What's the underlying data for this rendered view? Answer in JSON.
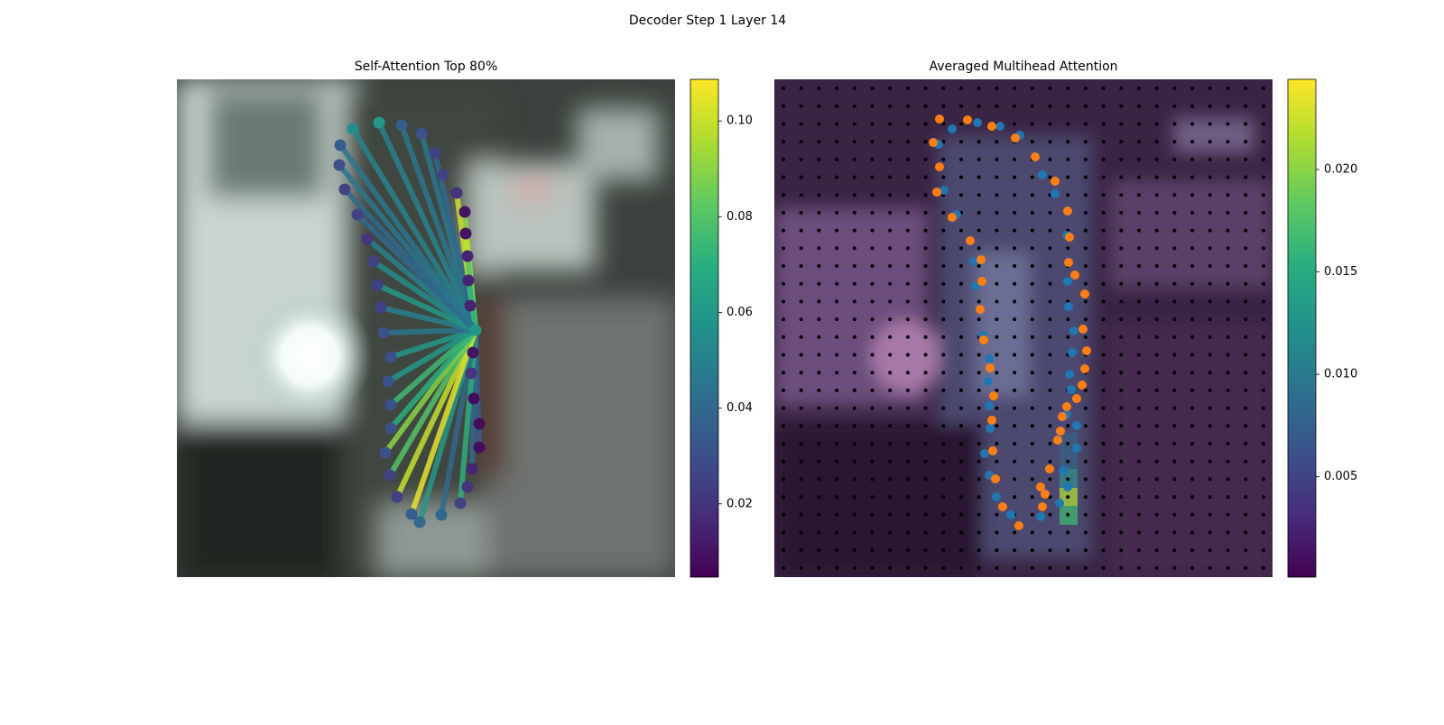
{
  "title": "Decoder Step 1 Layer 14",
  "chart_data": [
    {
      "type": "attention-graph",
      "title": "Self-Attention Top 80%",
      "xlim": [
        0,
        552
      ],
      "ylim": [
        552,
        0
      ],
      "x": [
        195,
        224,
        249,
        271,
        286,
        295,
        310,
        319,
        320,
        322,
        323,
        325,
        331,
        328,
        326,
        329,
        335,
        335,
        327,
        322,
        314,
        293,
        269,
        260,
        244,
        236,
        231,
        237,
        237,
        234,
        237,
        229,
        226,
        222,
        218,
        211,
        200,
        186,
        180,
        181
      ],
      "y": [
        55,
        48,
        51,
        60,
        82,
        106,
        126,
        147,
        171,
        196,
        223,
        251,
        278,
        303,
        326,
        354,
        382,
        408,
        432,
        452,
        470,
        483,
        491,
        482,
        463,
        439,
        414,
        387,
        361,
        335,
        308,
        281,
        253,
        228,
        202,
        177,
        150,
        122,
        95,
        73
      ],
      "values": [
        0.055,
        0.06,
        0.035,
        0.03,
        0.025,
        0.025,
        0.02,
        0.01,
        0.01,
        0.015,
        0.015,
        0.015,
        0.06,
        0.01,
        0.02,
        0.008,
        0.008,
        0.008,
        0.015,
        0.02,
        0.025,
        0.04,
        0.04,
        0.035,
        0.025,
        0.025,
        0.03,
        0.03,
        0.03,
        0.03,
        0.03,
        0.03,
        0.025,
        0.025,
        0.025,
        0.02,
        0.025,
        0.025,
        0.03,
        0.035
      ],
      "weights": [
        0.05,
        0.05,
        0.045,
        0.045,
        0.04,
        null,
        0.1,
        0.09,
        0.1,
        0.08,
        0.07,
        null,
        null,
        0.06,
        0.05,
        0.04,
        null,
        0.035,
        0.04,
        null,
        0.07,
        0.04,
        0.06,
        0.105,
        0.1,
        0.08,
        0.09,
        0.07,
        0.075,
        0.06,
        0.06,
        0.045,
        0.05,
        0.06,
        0.055,
        0.05,
        0.04,
        0.04,
        0.045,
        0.045
      ],
      "target": 12,
      "colormap": "viridis",
      "colorbar": {
        "lim": [
          0.0047,
          0.1087
        ],
        "ticks": [
          0.02,
          0.04,
          0.06,
          0.08,
          {
            "value": 0.1,
            "label": "0.10"
          }
        ]
      }
    },
    {
      "type": "scatter",
      "title": "Averaged Multihead Attention",
      "xlim": [
        0,
        552
      ],
      "ylim": [
        552,
        0
      ],
      "series": [
        {
          "color": "#1f77b4",
          "x": [
            197,
            225,
            250,
            272,
            297,
            311,
            324,
            325,
            326,
            332,
            330,
            327,
            329,
            324,
            335,
            335,
            320,
            325,
            316,
            295,
            262,
            246,
            238,
            233,
            239,
            238,
            237,
            238,
            231,
            223,
            221,
            202,
            188,
            182
          ],
          "y": [
            55,
            48,
            52,
            62,
            106,
            127,
            173,
            224,
            252,
            279,
            303,
            327,
            344,
            372,
            384,
            409,
            434,
            452,
            470,
            485,
            483,
            463,
            439,
            415,
            387,
            362,
            335,
            310,
            284,
            229,
            202,
            150,
            123,
            72
          ]
        },
        {
          "color": "#ff7f0e",
          "x": [
            183,
            214,
            241,
            267,
            289,
            311,
            325,
            327,
            326,
            333,
            344,
            342,
            346,
            344,
            341,
            335,
            324,
            319,
            317,
            314,
            305,
            295,
            300,
            297,
            271,
            253,
            245,
            242,
            241,
            243,
            239,
            232,
            228,
            230,
            229,
            217,
            197,
            180,
            183,
            176
          ],
          "y": [
            44,
            45,
            52,
            65,
            86,
            113,
            146,
            175,
            203,
            217,
            238,
            277,
            301,
            321,
            339,
            354,
            363,
            374,
            390,
            400,
            432,
            452,
            460,
            474,
            495,
            474,
            443,
            412,
            378,
            351,
            320,
            289,
            255,
            224,
            200,
            179,
            153,
            125,
            97,
            70
          ]
        }
      ],
      "colormap": "viridis",
      "colorbar": {
        "lim": [
          0.0001,
          0.0244
        ],
        "ticks": [
          0.005,
          {
            "value": 0.01,
            "label": "0.010"
          },
          {
            "value": 0.015,
            "label": "0.015"
          },
          {
            "value": 0.02,
            "label": "0.020"
          }
        ]
      }
    }
  ]
}
